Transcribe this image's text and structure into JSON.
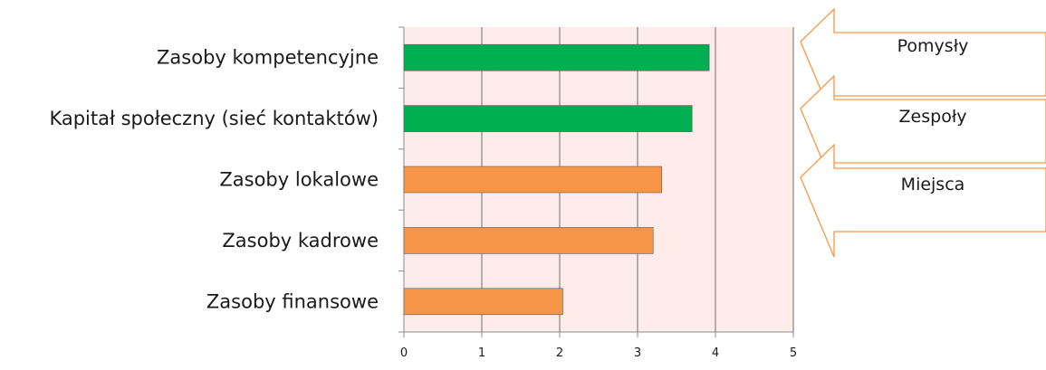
{
  "chart_data": {
    "type": "bar",
    "orientation": "horizontal",
    "categories": [
      "Zasoby kompetencyjne",
      "Kapitał społeczny (sieć kontaktów)",
      "Zasoby lokalowe",
      "Zasoby kadrowe",
      "Zasoby finansowe"
    ],
    "values": [
      3.92,
      3.7,
      3.31,
      3.2,
      2.04
    ],
    "bar_colors": [
      "#00b050",
      "#00b050",
      "#f79646",
      "#f79646",
      "#f79646"
    ],
    "xlim": [
      0,
      5
    ],
    "xticks": [
      "0",
      "1",
      "2",
      "3",
      "4",
      "5"
    ],
    "grid": "vertical",
    "plot_background": "#fdecea"
  },
  "arrows": {
    "stroke_color": "#f79646",
    "labels": [
      "Pomysły",
      "Zespoły",
      "Miejsca"
    ]
  }
}
